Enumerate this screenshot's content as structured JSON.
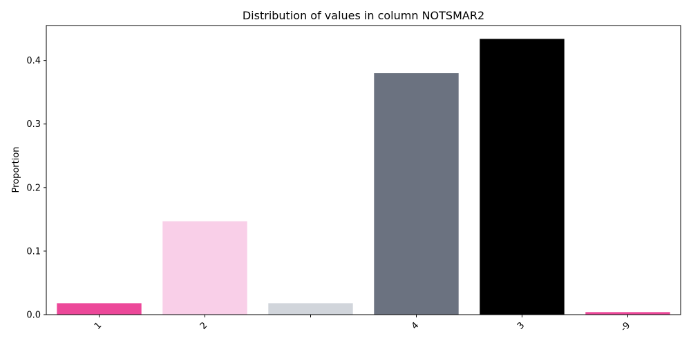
{
  "chart_data": {
    "type": "bar",
    "title": "Distribution of values in column NOTSMAR2",
    "xlabel": "",
    "ylabel": "Proportion",
    "categories": [
      "1",
      "2",
      "",
      "4",
      "3",
      "-9"
    ],
    "values": [
      0.018,
      0.147,
      0.018,
      0.38,
      0.434,
      0.004
    ],
    "colors": [
      "#ec4899",
      "#f9cfe8",
      "#d1d5db",
      "#6b7280",
      "#000000",
      "#ec4899"
    ],
    "ylim": [
      0,
      0.455
    ],
    "yticks": [
      "0.0",
      "0.1",
      "0.2",
      "0.3",
      "0.4"
    ],
    "grid": false,
    "legend": "none"
  }
}
